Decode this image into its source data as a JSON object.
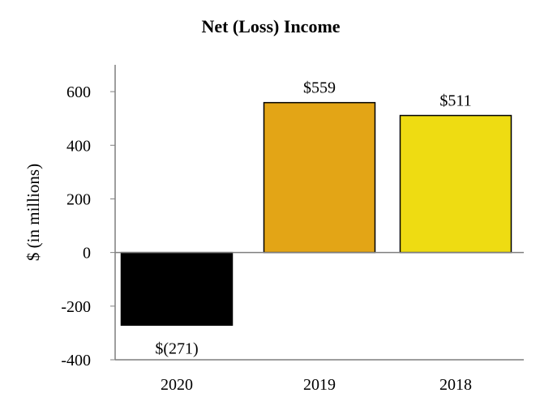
{
  "chart_data": {
    "type": "bar",
    "title": "Net (Loss) Income",
    "xlabel": "",
    "ylabel": "$ (in millions)",
    "categories": [
      "2020",
      "2019",
      "2018"
    ],
    "values": [
      -271,
      559,
      511
    ],
    "data_labels": [
      "$(271)",
      "$559",
      "$511"
    ],
    "colors": [
      "#000000",
      "#E3A516",
      "#EEDC12"
    ],
    "ylim": [
      -400,
      700
    ],
    "yticks": [
      -400,
      -200,
      0,
      200,
      400,
      600
    ],
    "ytick_labels": [
      "-400",
      "-200",
      "0",
      "200",
      "400",
      "600"
    ],
    "grid": false,
    "legend": "none"
  }
}
